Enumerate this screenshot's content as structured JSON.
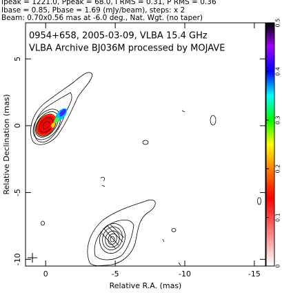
{
  "chart_data": {
    "type": "contour",
    "header": [
      "Ipeak = 1221.0, Ppeak = 68.0, I RMS = 0.31, P RMS = 0.36",
      "Ibase = 0.85, Pbase = 1.69 (mJy/beam), steps: x 2",
      "Beam: 0.70x0.56 mas at -6.0 deg., Nat. Wgt. (no taper)"
    ],
    "title": "0954+658, 2005-03-09, VLBA 15.4 GHz",
    "subtitle": "VLBA Archive BJ036M processed by MOJAVE",
    "xlabel": "Relative R.A. (mas)",
    "ylabel": "Relative Declination (mas)",
    "xlim": [
      1.45,
      -15.8
    ],
    "xticks": [
      0,
      -5,
      -10,
      -15
    ],
    "ylim": [
      -10.5,
      7.7
    ],
    "yticks": [
      -10,
      -5,
      0,
      5
    ],
    "colorbar_lim": [
      0,
      0.5
    ],
    "colorbar_ticks": [
      0,
      0.1,
      0.2,
      0.3,
      0.4,
      0.5
    ]
  }
}
